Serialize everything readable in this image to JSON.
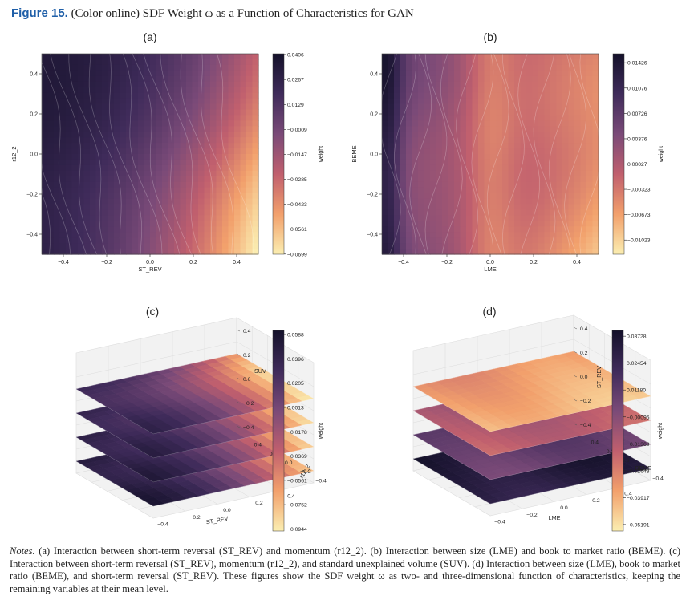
{
  "figure": {
    "label": "Figure 15.",
    "caption": "(Color online) SDF Weight ω as a Function of Characteristics for GAN"
  },
  "chart_data": [
    {
      "type": "heatmap",
      "panel": "(a)",
      "xlabel": "ST_REV",
      "ylabel": "r12_2",
      "x_ticks": [
        "−0.4",
        "−0.2",
        "0.0",
        "0.2",
        "0.4"
      ],
      "y_ticks": [
        "0.4",
        "0.2",
        "0.0",
        "−0.2",
        "−0.4"
      ],
      "colorbar_label": "weight",
      "colorbar_ticks": [
        "0.0406",
        "0.0267",
        "0.0129",
        "−0.0009",
        "−0.0147",
        "−0.0285",
        "−0.0423",
        "−0.0561",
        "−0.0699"
      ],
      "zlim": [
        -0.07,
        0.041
      ]
    },
    {
      "type": "heatmap",
      "panel": "(b)",
      "xlabel": "LME",
      "ylabel": "BEME",
      "x_ticks": [
        "−0.4",
        "−0.2",
        "0.0",
        "0.2",
        "0.4"
      ],
      "y_ticks": [
        "0.4",
        "0.2",
        "0.0",
        "−0.2",
        "−0.4"
      ],
      "colorbar_label": "weight",
      "colorbar_ticks": [
        "0.01426",
        "0.01076",
        "0.00726",
        "0.00376",
        "0.00027",
        "−0.00323",
        "−0.00673",
        "−0.01023"
      ],
      "zlim": [
        -0.0122,
        0.0155
      ]
    },
    {
      "type": "surface3d",
      "panel": "(c)",
      "xlabel": "ST_REV",
      "ylabel": "r12_2",
      "zlabel": "SUV",
      "x_ticks": [
        "−0.4",
        "−0.2",
        "0.0",
        "0.2",
        "0.4"
      ],
      "y_ticks": [
        "0.4",
        "0.2",
        "0.0",
        "−0.2",
        "−0.4"
      ],
      "z_ticks": [
        "0.4",
        "0.2",
        "0.0",
        "−0.2",
        "−0.4"
      ],
      "slice_levels": [
        -0.4,
        -0.2,
        0.0,
        0.2
      ],
      "colorbar_label": "weight",
      "colorbar_ticks": [
        "0.0588",
        "0.0396",
        "0.0205",
        "0.0013",
        "−0.0178",
        "−0.0369",
        "−0.0561",
        "−0.0752",
        "−0.0944"
      ],
      "zlim": [
        -0.096,
        0.062
      ]
    },
    {
      "type": "surface3d",
      "panel": "(d)",
      "xlabel": "LME",
      "ylabel": "BEME",
      "zlabel": "ST_REV",
      "x_ticks": [
        "−0.4",
        "−0.2",
        "0.0",
        "0.2",
        "0.4"
      ],
      "y_ticks": [
        "0.4",
        "0.2",
        "0.0",
        "−0.2",
        "−0.4"
      ],
      "z_ticks": [
        "0.4",
        "0.2",
        "0.0",
        "−0.2",
        "−0.4"
      ],
      "slice_levels": [
        -0.4,
        -0.2,
        0.0,
        0.2
      ],
      "colorbar_label": "weight",
      "colorbar_ticks": [
        "0.03728",
        "0.02454",
        "0.01180",
        "−0.00095",
        "−0.01369",
        "−0.02643",
        "−0.03917",
        "−0.05191"
      ],
      "zlim": [
        -0.055,
        0.04
      ]
    }
  ],
  "notes": {
    "label": "Notes.",
    "text": "(a) Interaction between short-term reversal (ST_REV) and momentum (r12_2). (b) Interaction between size (LME) and book to market ratio (BEME). (c) Interaction between short-term reversal (ST_REV), momentum (r12_2), and standard unexplained volume (SUV). (d) Interaction between size (LME), book to market ratio (BEME), and short-term reversal (ST_REV). These figures show the SDF weight ω as two- and three-dimensional function of characteristics, keeping the remaining variables at their mean level."
  }
}
